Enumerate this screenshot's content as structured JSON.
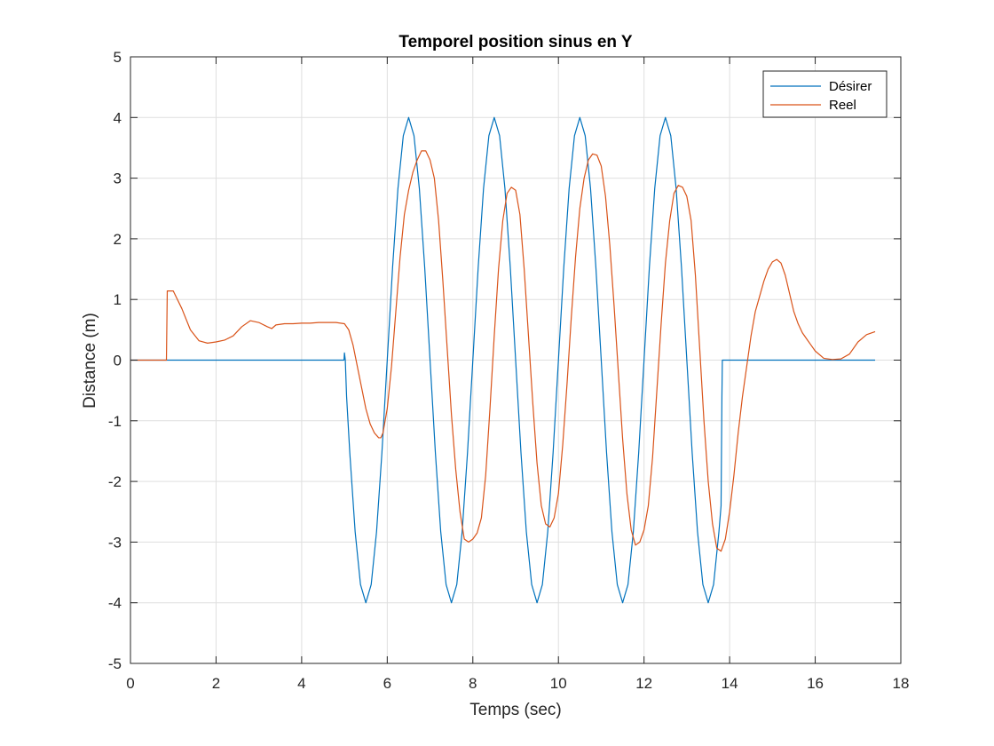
{
  "chart_data": {
    "type": "line",
    "title": "Temporel position sinus en Y",
    "xlabel": "Temps (sec)",
    "ylabel": "Distance (m)",
    "xlim": [
      0,
      18
    ],
    "ylim": [
      -5,
      5
    ],
    "xticks": [
      0,
      2,
      4,
      6,
      8,
      10,
      12,
      14,
      16,
      18
    ],
    "yticks": [
      -5,
      -4,
      -3,
      -2,
      -1,
      0,
      1,
      2,
      3,
      4,
      5
    ],
    "xtick_labels": [
      "0",
      "2",
      "4",
      "6",
      "8",
      "10",
      "12",
      "14",
      "16",
      "18"
    ],
    "ytick_labels": [
      "-5",
      "-4",
      "-3",
      "-2",
      "-1",
      "0",
      "1",
      "2",
      "3",
      "4",
      "5"
    ],
    "grid": true,
    "legend_position": "top-right",
    "series": [
      {
        "name": "Désirer",
        "color": "#0072BD",
        "x": [
          0,
          4.99,
          5.0,
          5.02,
          5.05,
          5.125,
          5.25,
          5.375,
          5.5,
          5.625,
          5.75,
          5.875,
          6.0,
          6.125,
          6.25,
          6.375,
          6.5,
          6.625,
          6.75,
          6.875,
          7.0,
          7.125,
          7.25,
          7.375,
          7.5,
          7.625,
          7.75,
          7.875,
          8.0,
          8.125,
          8.25,
          8.375,
          8.5,
          8.625,
          8.75,
          8.875,
          9.0,
          9.125,
          9.25,
          9.375,
          9.5,
          9.625,
          9.75,
          9.875,
          10.0,
          10.125,
          10.25,
          10.375,
          10.5,
          10.625,
          10.75,
          10.875,
          11.0,
          11.125,
          11.25,
          11.375,
          11.5,
          11.625,
          11.75,
          11.875,
          12.0,
          12.125,
          12.25,
          12.375,
          12.5,
          12.625,
          12.75,
          12.875,
          13.0,
          13.125,
          13.25,
          13.375,
          13.5,
          13.625,
          13.75,
          13.8,
          13.81,
          13.82,
          13.83,
          17.4
        ],
        "y": [
          0,
          0,
          0.12,
          0.0,
          -0.6,
          -1.53,
          -2.83,
          -3.7,
          -4.0,
          -3.7,
          -2.83,
          -1.53,
          0.0,
          1.53,
          2.83,
          3.7,
          4.0,
          3.7,
          2.83,
          1.53,
          0.0,
          -1.53,
          -2.83,
          -3.7,
          -4.0,
          -3.7,
          -2.83,
          -1.53,
          0.0,
          1.53,
          2.83,
          3.7,
          4.0,
          3.7,
          2.83,
          1.53,
          0.0,
          -1.53,
          -2.83,
          -3.7,
          -4.0,
          -3.7,
          -2.83,
          -1.53,
          0.0,
          1.53,
          2.83,
          3.7,
          4.0,
          3.7,
          2.83,
          1.53,
          0.0,
          -1.53,
          -2.83,
          -3.7,
          -4.0,
          -3.7,
          -2.83,
          -1.53,
          0.0,
          1.53,
          2.83,
          3.7,
          4.0,
          3.7,
          2.83,
          1.53,
          0.0,
          -1.53,
          -2.83,
          -3.7,
          -4.0,
          -3.7,
          -2.83,
          -2.4,
          -1.5,
          -0.6,
          0.0,
          0.0
        ]
      },
      {
        "name": "Reel",
        "color": "#D95319",
        "x": [
          0,
          0.84,
          0.86,
          1.0,
          1.2,
          1.4,
          1.6,
          1.8,
          2.0,
          2.2,
          2.4,
          2.6,
          2.8,
          3.0,
          3.2,
          3.3,
          3.4,
          3.6,
          3.8,
          4.0,
          4.2,
          4.4,
          4.6,
          4.8,
          5.0,
          5.1,
          5.2,
          5.3,
          5.4,
          5.5,
          5.6,
          5.7,
          5.8,
          5.85,
          5.9,
          6.0,
          6.1,
          6.2,
          6.3,
          6.4,
          6.5,
          6.6,
          6.7,
          6.8,
          6.9,
          7.0,
          7.1,
          7.2,
          7.3,
          7.4,
          7.5,
          7.6,
          7.7,
          7.8,
          7.9,
          8.0,
          8.1,
          8.2,
          8.3,
          8.4,
          8.5,
          8.6,
          8.7,
          8.8,
          8.9,
          9.0,
          9.1,
          9.2,
          9.3,
          9.4,
          9.5,
          9.6,
          9.7,
          9.8,
          9.9,
          10.0,
          10.1,
          10.2,
          10.3,
          10.4,
          10.5,
          10.6,
          10.7,
          10.8,
          10.9,
          11.0,
          11.1,
          11.2,
          11.3,
          11.4,
          11.5,
          11.6,
          11.7,
          11.8,
          11.9,
          12.0,
          12.1,
          12.2,
          12.3,
          12.4,
          12.5,
          12.6,
          12.7,
          12.8,
          12.9,
          13.0,
          13.1,
          13.2,
          13.3,
          13.4,
          13.5,
          13.6,
          13.7,
          13.8,
          13.9,
          14.0,
          14.1,
          14.2,
          14.3,
          14.4,
          14.5,
          14.6,
          14.7,
          14.8,
          14.9,
          15.0,
          15.1,
          15.2,
          15.3,
          15.4,
          15.5,
          15.6,
          15.7,
          15.8,
          15.9,
          16.0,
          16.2,
          16.4,
          16.6,
          16.8,
          17.0,
          17.2,
          17.4
        ],
        "y": [
          0,
          0,
          1.14,
          1.14,
          0.85,
          0.5,
          0.32,
          0.28,
          0.3,
          0.33,
          0.4,
          0.55,
          0.65,
          0.62,
          0.55,
          0.52,
          0.58,
          0.6,
          0.6,
          0.61,
          0.61,
          0.62,
          0.62,
          0.62,
          0.6,
          0.5,
          0.25,
          -0.1,
          -0.45,
          -0.8,
          -1.05,
          -1.2,
          -1.28,
          -1.28,
          -1.2,
          -0.8,
          -0.1,
          0.8,
          1.7,
          2.4,
          2.8,
          3.1,
          3.3,
          3.45,
          3.45,
          3.3,
          3.0,
          2.3,
          1.3,
          0.2,
          -0.9,
          -1.8,
          -2.5,
          -2.95,
          -3.0,
          -2.95,
          -2.85,
          -2.6,
          -1.9,
          -0.8,
          0.4,
          1.5,
          2.3,
          2.75,
          2.85,
          2.8,
          2.4,
          1.5,
          0.4,
          -0.7,
          -1.7,
          -2.4,
          -2.7,
          -2.75,
          -2.6,
          -2.2,
          -1.4,
          -0.4,
          0.7,
          1.7,
          2.5,
          3.0,
          3.3,
          3.4,
          3.38,
          3.2,
          2.7,
          1.9,
          0.9,
          -0.2,
          -1.3,
          -2.2,
          -2.8,
          -3.05,
          -3.0,
          -2.8,
          -2.4,
          -1.6,
          -0.5,
          0.6,
          1.6,
          2.3,
          2.75,
          2.88,
          2.85,
          2.7,
          2.3,
          1.4,
          0.2,
          -1.0,
          -2.0,
          -2.7,
          -3.1,
          -3.15,
          -2.95,
          -2.5,
          -1.9,
          -1.2,
          -0.6,
          -0.1,
          0.4,
          0.8,
          1.05,
          1.3,
          1.5,
          1.62,
          1.66,
          1.6,
          1.4,
          1.1,
          0.8,
          0.6,
          0.45,
          0.35,
          0.25,
          0.15,
          0.03,
          0.01,
          0.02,
          0.1,
          0.3,
          0.42,
          0.47
        ]
      }
    ]
  }
}
